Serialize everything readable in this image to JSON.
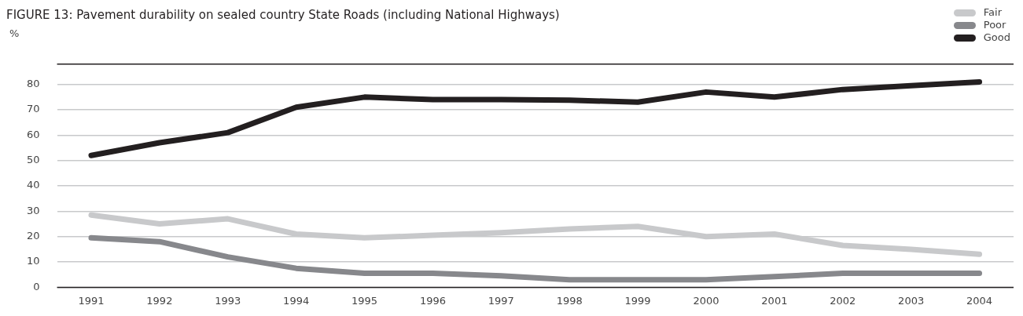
{
  "chart_data": {
    "type": "line",
    "title": "FIGURE 13: Pavement durability on sealed country State Roads (including National Highways)",
    "ylabel": "%",
    "categories": [
      "1991",
      "1992",
      "1993",
      "1994",
      "1995",
      "1996",
      "1997",
      "1998",
      "1999",
      "2000",
      "2001",
      "2002",
      "2003",
      "2004"
    ],
    "series": [
      {
        "name": "Fair",
        "color": "#c8c9cb",
        "values": [
          28.5,
          25,
          27,
          21,
          19.5,
          20.5,
          21.5,
          23,
          24,
          20,
          21,
          16.5,
          15,
          13
        ]
      },
      {
        "name": "Poor",
        "color": "#87888c",
        "values": [
          19.5,
          18,
          12,
          7.5,
          5.5,
          5.5,
          4.5,
          3,
          3,
          3,
          4.2,
          5.5,
          5.5,
          5.5
        ]
      },
      {
        "name": "Good",
        "color": "#231f20",
        "values": [
          52,
          57,
          61,
          71,
          75,
          74,
          74,
          73.8,
          73,
          77,
          75,
          78,
          79.5,
          81
        ]
      }
    ],
    "ylim": [
      0,
      88
    ],
    "yticks": [
      0,
      10,
      20,
      30,
      40,
      50,
      60,
      70,
      80
    ],
    "grid": "y",
    "legend": "top right",
    "marker": "none",
    "line_style": "solid"
  }
}
